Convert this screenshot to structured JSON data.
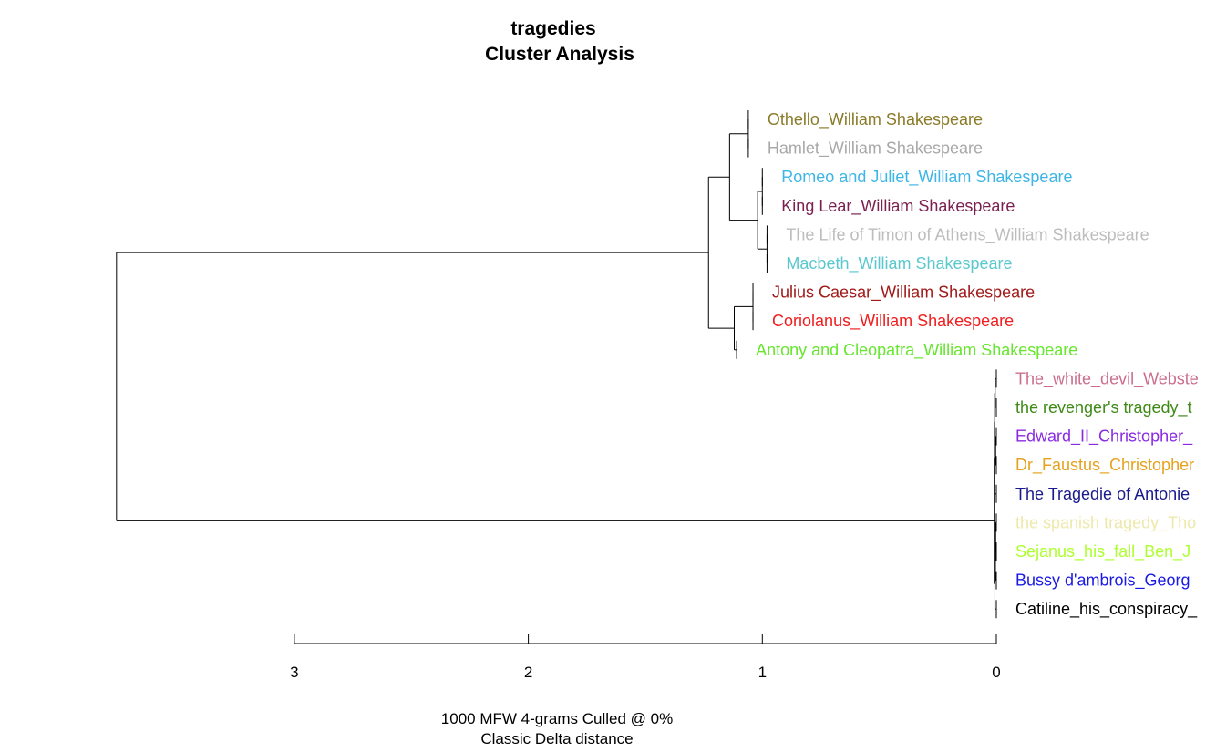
{
  "chart_data": {
    "type": "dendrogram",
    "title": "tragedies",
    "subtitle": "Cluster Analysis",
    "xlabel_line1": "1000 MFW 4-grams Culled @ 0%",
    "xlabel_line2": "Classic Delta distance",
    "xlim": [
      3.0,
      0
    ],
    "x_ticks": [
      "3",
      "2",
      "1",
      "0"
    ],
    "leaves": [
      {
        "label": "Othello_William Shakespeare",
        "color": "#8B7B28",
        "height": 1.06
      },
      {
        "label": "Hamlet_William Shakespeare",
        "color": "#A8A8A8",
        "height": 1.06
      },
      {
        "label": "Romeo and Juliet_William Shakespeare",
        "color": "#3DB5E6",
        "height": 1.0
      },
      {
        "label": "King Lear_William Shakespeare",
        "color": "#7A1F4F",
        "height": 1.0
      },
      {
        "label": "The Life of Timon of Athens_William Shakespeare",
        "color": "#BDBDBD",
        "height": 0.98
      },
      {
        "label": "Macbeth_William Shakespeare",
        "color": "#5BC8CF",
        "height": 0.98
      },
      {
        "label": "Julius Caesar_William Shakespeare",
        "color": "#A11B1B",
        "height": 1.04
      },
      {
        "label": "Coriolanus_William Shakespeare",
        "color": "#F01E1E",
        "height": 1.04
      },
      {
        "label": "Antony and Cleopatra_William Shakespeare",
        "color": "#66E62E",
        "height": 1.11
      },
      {
        "label": "The_white_devil_Webste",
        "color": "#CC6E8E",
        "height": 0.0
      },
      {
        "label": "the revenger's tragedy_t",
        "color": "#3F8A16",
        "height": 0.0
      },
      {
        "label": "Edward_II_Christopher_",
        "color": "#8A2BE2",
        "height": 0.0
      },
      {
        "label": "Dr_Faustus_Christopher",
        "color": "#E6A21E",
        "height": 0.0
      },
      {
        "label": "The Tragedie of Antonie",
        "color": "#1A1A8C",
        "height": 0.0
      },
      {
        "label": "the spanish tragedy_Tho",
        "color": "#EEE8AA",
        "height": 0.0
      },
      {
        "label": "Sejanus_his_fall_Ben_J",
        "color": "#ADFF2F",
        "height": 0.0
      },
      {
        "label": "Bussy d'ambrois_Georg",
        "color": "#1A1AE6",
        "height": 0.0
      },
      {
        "label": "Catiline_his_conspiracy_",
        "color": "#000000",
        "height": 0.0
      }
    ],
    "merges": [
      {
        "left": "L0",
        "right": "L1",
        "height": 1.06
      },
      {
        "left": "L2",
        "right": "L3",
        "height": 1.0
      },
      {
        "left": "L4",
        "right": "L5",
        "height": 0.98
      },
      {
        "left": "M1",
        "right": "M2",
        "height": 1.02
      },
      {
        "left": "M0",
        "right": "M3",
        "height": 1.14
      },
      {
        "left": "L6",
        "right": "L7",
        "height": 1.04
      },
      {
        "left": "M5",
        "right": "L8",
        "height": 1.12
      },
      {
        "left": "M4",
        "right": "M6",
        "height": 1.23
      },
      {
        "left": "L9",
        "right": "L10",
        "height": 0.005
      },
      {
        "left": "L11",
        "right": "L12",
        "height": 0.003
      },
      {
        "left": "M8",
        "right": "M9",
        "height": 0.007
      },
      {
        "left": "L13",
        "right": "M10",
        "height": 0.008
      },
      {
        "left": "L14",
        "right": "L15",
        "height": 0.003
      },
      {
        "left": "M12",
        "right": "L16",
        "height": 0.004
      },
      {
        "left": "M13",
        "right": "L17",
        "height": 0.006
      },
      {
        "left": "M11",
        "right": "M14",
        "height": 0.009
      },
      {
        "left": "M7",
        "right": "M15",
        "height": 3.76
      }
    ]
  }
}
